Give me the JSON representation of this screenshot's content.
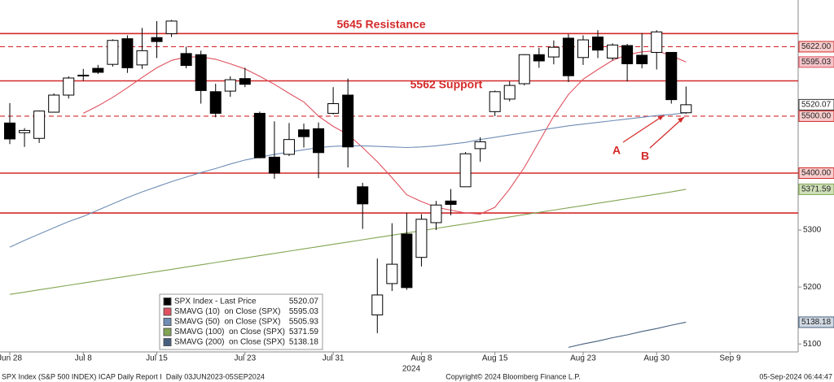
{
  "chart_data": {
    "type": "candlestick",
    "categories": [
      "Jun 28",
      null,
      null,
      null,
      null,
      "Jul 8",
      null,
      null,
      null,
      null,
      "Jul 15",
      null,
      null,
      null,
      null,
      null,
      "Jul 23",
      null,
      null,
      null,
      null,
      null,
      "Jul 31",
      null,
      null,
      null,
      null,
      null,
      "Aug 8",
      null,
      null,
      null,
      null,
      "Aug 15",
      null,
      null,
      null,
      null,
      null,
      "Aug 23",
      null,
      null,
      null,
      null,
      "Aug 30",
      null,
      null,
      null,
      null,
      "Sep 9"
    ],
    "year_label": "2024",
    "price_name": "SPX Index - Last Price",
    "open": [
      5488,
      5471,
      5461,
      5507,
      5537,
      5572,
      5584,
      5591,
      5636,
      5590,
      5638,
      5645,
      5610,
      5608,
      5543,
      5544,
      5566,
      5505,
      5428,
      5433,
      5476,
      5478,
      5505,
      5537,
      5376,
      5151,
      5206,
      5293,
      5252,
      5313,
      5351,
      5376,
      5443,
      5508,
      5530,
      5557,
      5608,
      5604,
      5637,
      5603,
      5639,
      5602,
      5624,
      5607,
      5612,
      5612,
      5506,
      null,
      null,
      null
    ],
    "high": [
      5523,
      5479,
      5510,
      5540,
      5570,
      5583,
      5590,
      5635,
      5642,
      5655,
      5667,
      5669,
      5622,
      5615,
      5557,
      5570,
      5585,
      5508,
      5491,
      5488,
      5487,
      5489,
      5551,
      5566,
      5383,
      5250,
      5312,
      5330,
      5328,
      5351,
      5372,
      5437,
      5463,
      5545,
      5561,
      5609,
      5620,
      5633,
      5644,
      5642,
      5651,
      5628,
      5627,
      5646,
      5651,
      5612,
      5552,
      null,
      null,
      null
    ],
    "low": [
      5451,
      5446,
      5453,
      5507,
      5531,
      5562,
      5574,
      5587,
      5576,
      5583,
      5602,
      5639,
      5584,
      5522,
      5498,
      5534,
      5551,
      5426,
      5390,
      5430,
      5445,
      5391,
      5503,
      5410,
      5302,
      5119,
      5193,
      5195,
      5236,
      5300,
      5326,
      5376,
      5420,
      5500,
      5526,
      5554,
      5585,
      5591,
      5560,
      5590,
      5602,
      5598,
      5561,
      5584,
      5582,
      5522,
      5504,
      null,
      null,
      null
    ],
    "close": [
      5460,
      5475,
      5509,
      5537,
      5567,
      5572,
      5577,
      5633,
      5585,
      5615,
      5631,
      5667,
      5589,
      5545,
      5505,
      5564,
      5556,
      5427,
      5400,
      5459,
      5464,
      5436,
      5522,
      5446,
      5346,
      5186,
      5240,
      5199,
      5319,
      5344,
      5345,
      5434,
      5455,
      5543,
      5554,
      5608,
      5597,
      5621,
      5571,
      5634,
      5616,
      5625,
      5592,
      5592,
      5648,
      5529,
      5520.07,
      null,
      null,
      null
    ],
    "series": [
      {
        "name": "SMAVG (10)  on Close (SPX)",
        "color": "#e0505e",
        "values": [
          null,
          null,
          null,
          null,
          null,
          5505,
          5518,
          5533,
          5550,
          5568,
          5585,
          5598,
          5604,
          5604,
          5600,
          5592,
          5583,
          5570,
          5556,
          5540,
          5525,
          5500,
          5482,
          5468,
          5445,
          5420,
          5392,
          5362,
          5350,
          5340,
          5335,
          5330,
          5328,
          5340,
          5372,
          5410,
          5455,
          5500,
          5538,
          5565,
          5582,
          5598,
          5608,
          5613,
          5615,
          5606,
          5595.03,
          null,
          null,
          null
        ]
      },
      {
        "name": "SMAVG (50)  on Close (SPX)",
        "color": "#6f8db5",
        "values": [
          5270,
          5282,
          5293,
          5304,
          5315,
          5324,
          5335,
          5346,
          5357,
          5367,
          5376,
          5385,
          5393,
          5401,
          5408,
          5416,
          5423,
          5428,
          5433,
          5437,
          5441,
          5445,
          5447,
          5448,
          5448,
          5447,
          5446,
          5445,
          5446,
          5448,
          5451,
          5454,
          5459,
          5463,
          5467,
          5471,
          5475,
          5479,
          5483,
          5486,
          5489,
          5492,
          5495,
          5498,
          5501,
          5503,
          5505.93,
          null,
          null,
          null
        ]
      },
      {
        "name": "SMAVG (100)  on Close (SPX)",
        "color": "#82a552",
        "values": [
          5187,
          5191,
          5195,
          5199,
          5203,
          5207,
          5211,
          5215,
          5219,
          5223,
          5227,
          5231,
          5235,
          5239,
          5243,
          5247,
          5251,
          5255,
          5259,
          5263,
          5267,
          5271,
          5275,
          5279,
          5283,
          5287,
          5291,
          5295,
          5299,
          5303,
          5307,
          5311,
          5315,
          5319,
          5323,
          5327,
          5331,
          5335,
          5339,
          5343,
          5347,
          5351,
          5355,
          5359,
          5363,
          5367,
          5371.59,
          null,
          null,
          null
        ]
      },
      {
        "name": "SMAVG (200)  on Close (SPX)",
        "color": "#46607f",
        "values": [
          null,
          null,
          null,
          null,
          null,
          null,
          null,
          null,
          null,
          null,
          null,
          null,
          null,
          null,
          null,
          null,
          null,
          null,
          null,
          null,
          null,
          null,
          null,
          null,
          null,
          null,
          null,
          null,
          null,
          null,
          null,
          null,
          null,
          null,
          null,
          null,
          null,
          null,
          5094,
          5100,
          5105,
          5111,
          5116,
          5122,
          5127,
          5133,
          5138.18,
          null,
          null,
          null
        ]
      }
    ],
    "levels": [
      {
        "value": 5645,
        "style": "solid"
      },
      {
        "value": 5622,
        "label": "5622.00",
        "style": "dashed"
      },
      {
        "value": 5562,
        "style": "solid"
      },
      {
        "value": 5500,
        "label": "5500.00",
        "style": "dashed"
      },
      {
        "value": 5400,
        "label": "5400.00",
        "style": "solid"
      },
      {
        "value": 5330,
        "style": "solid"
      }
    ],
    "level_color": "#d42a2a",
    "annotations": [
      {
        "text": "5645 Resistance"
      },
      {
        "text": "5562 Support"
      },
      {
        "text": "A"
      },
      {
        "text": "B"
      }
    ],
    "ylim": [
      5086,
      5704
    ],
    "yticks": [
      5100,
      5200,
      5300
    ]
  },
  "footer": {
    "left": "SPX Index (S&P 500 INDEX) ICAP Daily Report I  Daily 03JUN2023-05SEP2024",
    "center": "Copyright© 2024 Bloomberg Finance L.P.",
    "right": "05-Sep-2024 06:44:47"
  }
}
